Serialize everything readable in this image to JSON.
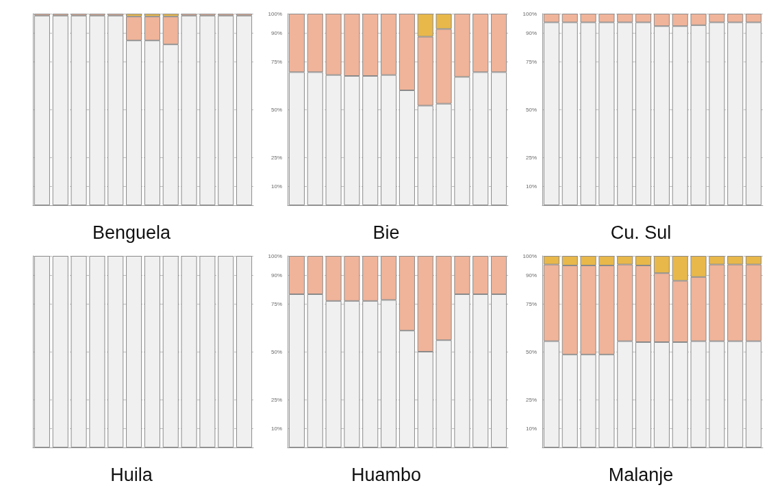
{
  "chart_data": [
    {
      "type": "bar",
      "stacked": true,
      "xlabel": "Benguela",
      "categories": [
        null,
        null,
        null,
        null,
        null,
        null,
        null,
        null,
        null,
        null,
        null,
        null
      ],
      "ylim": [
        0,
        100
      ],
      "yticks": [
        {
          "value": 10,
          "label": null
        },
        {
          "value": 25,
          "label": null
        },
        {
          "value": 50,
          "label": null
        },
        {
          "value": 75,
          "label": null
        },
        {
          "value": 90,
          "label": null
        },
        {
          "value": 100,
          "label": null
        }
      ],
      "grid": "y",
      "tick_labels": false,
      "series": [
        {
          "color": "#f0f0f0",
          "values": [
            99,
            99,
            99,
            99,
            99,
            86,
            86,
            84,
            99,
            99,
            99,
            99
          ]
        },
        {
          "color": "#f0b49a",
          "values": [
            1,
            1,
            1,
            1,
            1,
            12.5,
            12.5,
            14.5,
            1,
            1,
            1,
            1
          ]
        },
        {
          "color": "#e8b84a",
          "values": [
            null,
            null,
            null,
            null,
            null,
            1.5,
            1.5,
            1.5,
            null,
            null,
            null,
            null
          ]
        }
      ]
    },
    {
      "type": "bar",
      "stacked": true,
      "xlabel": "Bie",
      "categories": [
        null,
        null,
        null,
        null,
        null,
        null,
        null,
        null,
        null,
        null,
        null,
        null
      ],
      "ylim": [
        0,
        100
      ],
      "yticks": [
        {
          "value": 10,
          "label": "10%"
        },
        {
          "value": 25,
          "label": "25%"
        },
        {
          "value": 50,
          "label": "50%"
        },
        {
          "value": 75,
          "label": "75%"
        },
        {
          "value": 90,
          "label": "90%"
        },
        {
          "value": 100,
          "label": "100%"
        }
      ],
      "grid": "y",
      "tick_labels": "y",
      "series": [
        {
          "color": "#f0f0f0",
          "values": [
            69.5,
            69.5,
            68,
            67.5,
            67.5,
            68,
            60,
            52,
            53,
            67,
            69.5,
            69.5
          ]
        },
        {
          "color": "#f0b49a",
          "values": [
            30.5,
            30.5,
            32,
            32.5,
            32.5,
            32,
            40,
            36,
            39,
            33,
            30.5,
            30.5
          ]
        },
        {
          "color": "#e8b84a",
          "values": [
            null,
            null,
            null,
            null,
            null,
            null,
            null,
            12,
            8,
            null,
            null,
            null
          ]
        }
      ]
    },
    {
      "type": "bar",
      "stacked": true,
      "xlabel": "Cu. Sul",
      "categories": [
        null,
        null,
        null,
        null,
        null,
        null,
        null,
        null,
        null,
        null,
        null,
        null
      ],
      "ylim": [
        0,
        100
      ],
      "yticks": [
        {
          "value": 10,
          "label": "10%"
        },
        {
          "value": 25,
          "label": "25%"
        },
        {
          "value": 50,
          "label": "50%"
        },
        {
          "value": 75,
          "label": "75%"
        },
        {
          "value": 90,
          "label": "90%"
        },
        {
          "value": 100,
          "label": "100%"
        }
      ],
      "grid": "y",
      "tick_labels": "y",
      "series": [
        {
          "color": "#f0f0f0",
          "values": [
            95.5,
            95.5,
            95.5,
            95.5,
            95.5,
            95.5,
            93.5,
            93.5,
            94,
            95.5,
            95.5,
            95.5
          ]
        },
        {
          "color": "#f0b49a",
          "values": [
            4.5,
            4.5,
            4.5,
            4.5,
            4.5,
            4.5,
            6.5,
            6.5,
            6,
            4.5,
            4.5,
            4.5
          ]
        }
      ]
    },
    {
      "type": "bar",
      "stacked": true,
      "xlabel": "Huila",
      "categories": [
        null,
        null,
        null,
        null,
        null,
        null,
        null,
        null,
        null,
        null,
        null,
        null
      ],
      "ylim": [
        0,
        100
      ],
      "yticks": [
        {
          "value": 10,
          "label": null
        },
        {
          "value": 25,
          "label": null
        },
        {
          "value": 50,
          "label": null
        },
        {
          "value": 75,
          "label": null
        },
        {
          "value": 90,
          "label": null
        },
        {
          "value": 100,
          "label": null
        }
      ],
      "grid": "y",
      "tick_labels": false,
      "series": [
        {
          "color": "#f0f0f0",
          "values": [
            100,
            100,
            100,
            100,
            100,
            100,
            100,
            100,
            100,
            100,
            100,
            100
          ]
        }
      ]
    },
    {
      "type": "bar",
      "stacked": true,
      "xlabel": "Huambo",
      "categories": [
        null,
        null,
        null,
        null,
        null,
        null,
        null,
        null,
        null,
        null,
        null,
        null
      ],
      "ylim": [
        0,
        100
      ],
      "yticks": [
        {
          "value": 10,
          "label": "10%"
        },
        {
          "value": 25,
          "label": "25%"
        },
        {
          "value": 50,
          "label": "50%"
        },
        {
          "value": 75,
          "label": "75%"
        },
        {
          "value": 90,
          "label": "90%"
        },
        {
          "value": 100,
          "label": "100%"
        }
      ],
      "grid": "y",
      "tick_labels": "y",
      "series": [
        {
          "color": "#f0f0f0",
          "values": [
            80,
            80,
            76.5,
            76.5,
            76.5,
            77,
            61,
            50,
            56,
            80,
            80,
            80
          ]
        },
        {
          "color": "#f0b49a",
          "values": [
            20,
            20,
            23.5,
            23.5,
            23.5,
            23,
            39,
            50,
            44,
            20,
            20,
            20
          ]
        }
      ]
    },
    {
      "type": "bar",
      "stacked": true,
      "xlabel": "Malanje",
      "categories": [
        null,
        null,
        null,
        null,
        null,
        null,
        null,
        null,
        null,
        null,
        null,
        null
      ],
      "ylim": [
        0,
        100
      ],
      "yticks": [
        {
          "value": 10,
          "label": "10%"
        },
        {
          "value": 25,
          "label": "25%"
        },
        {
          "value": 50,
          "label": "50%"
        },
        {
          "value": 75,
          "label": "75%"
        },
        {
          "value": 90,
          "label": "90%"
        },
        {
          "value": 100,
          "label": "100%"
        }
      ],
      "grid": "y",
      "tick_labels": "y",
      "series": [
        {
          "color": "#f0f0f0",
          "values": [
            55.5,
            48.5,
            48.5,
            48.5,
            55.5,
            55,
            55,
            55,
            55.5,
            55.5,
            55.5,
            55.5
          ]
        },
        {
          "color": "#f0b49a",
          "values": [
            40,
            46.5,
            46.5,
            46.5,
            40,
            40,
            36,
            32,
            33.5,
            40,
            40,
            40
          ]
        },
        {
          "color": "#e8b84a",
          "values": [
            4.5,
            5,
            5,
            5,
            4.5,
            5,
            9,
            13,
            11,
            4.5,
            4.5,
            4.5
          ]
        }
      ]
    }
  ]
}
